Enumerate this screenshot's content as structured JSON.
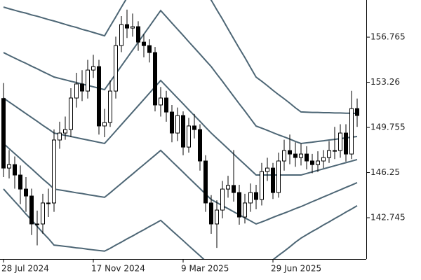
{
  "chart_data": {
    "type": "candlestick",
    "categories": [
      "28 Jul 2024",
      null,
      null,
      null,
      null,
      null,
      null,
      null,
      null,
      null,
      null,
      null,
      null,
      null,
      null,
      null,
      "17 Nov 2024",
      null,
      null,
      null,
      null,
      null,
      null,
      null,
      null,
      null,
      null,
      null,
      null,
      null,
      null,
      null,
      "9 Mar 2025",
      null,
      null,
      null,
      null,
      null,
      null,
      null,
      null,
      null,
      null,
      null,
      null,
      null,
      null,
      null,
      "29 Jun 2025",
      null,
      null,
      null,
      null,
      null,
      null,
      null,
      null,
      null,
      null,
      null,
      null,
      null,
      null,
      null
    ],
    "open": [
      152.0,
      146.6,
      146.87,
      146.06,
      144.97,
      144.43,
      142.26,
      142.26,
      143.89,
      143.89,
      148.78,
      149.32,
      149.59,
      152.04,
      153.13,
      152.58,
      154.21,
      154.48,
      149.87,
      150.14,
      152.58,
      156.11,
      157.74,
      157.47,
      157.58,
      156.38,
      156.11,
      155.57,
      151.5,
      152.04,
      150.95,
      149.32,
      150.68,
      148.23,
      149.87,
      149.59,
      147.15,
      143.89,
      142.26,
      143.34,
      144.97,
      145.25,
      144.7,
      142.8,
      143.89,
      144.7,
      144.16,
      146.33,
      146.6,
      144.7,
      147.15,
      147.96,
      147.69,
      147.42,
      147.69,
      147.15,
      146.87,
      147.15,
      147.42,
      147.96,
      147.96,
      149.32,
      147.69,
      151.22
    ],
    "high": [
      153.2,
      148.0,
      147.5,
      146.8,
      145.9,
      145.0,
      143.3,
      144.6,
      145.0,
      149.6,
      150.2,
      150.6,
      152.8,
      154.0,
      154.2,
      155.0,
      155.4,
      155.0,
      151.2,
      153.4,
      156.8,
      158.4,
      158.9,
      158.6,
      158.0,
      157.0,
      156.6,
      156.0,
      152.9,
      152.6,
      151.5,
      151.3,
      151.0,
      150.5,
      150.8,
      150.0,
      147.6,
      144.5,
      144.1,
      145.6,
      146.0,
      148.0,
      145.3,
      144.6,
      145.4,
      145.3,
      147.0,
      147.4,
      147.0,
      147.8,
      148.8,
      149.2,
      148.6,
      148.5,
      148.3,
      147.7,
      147.9,
      148.0,
      148.7,
      149.8,
      150.0,
      150.0,
      152.6,
      152.0
    ],
    "low": [
      145.9,
      145.8,
      145.0,
      143.8,
      143.2,
      141.4,
      140.6,
      141.5,
      142.8,
      143.2,
      148.1,
      148.8,
      149.0,
      151.3,
      151.8,
      152.0,
      153.6,
      149.2,
      149.0,
      149.8,
      152.0,
      155.6,
      156.7,
      156.8,
      155.7,
      155.2,
      154.8,
      151.0,
      150.6,
      150.2,
      148.6,
      148.7,
      147.6,
      147.8,
      148.9,
      146.4,
      143.2,
      141.5,
      140.4,
      142.7,
      144.3,
      144.0,
      142.2,
      142.3,
      143.2,
      143.4,
      143.7,
      145.6,
      144.2,
      144.3,
      146.4,
      146.9,
      146.7,
      146.8,
      146.5,
      146.2,
      146.3,
      146.6,
      147.0,
      147.3,
      147.4,
      147.1,
      147.3,
      149.8
    ],
    "close": [
      146.6,
      146.87,
      146.06,
      144.97,
      144.43,
      142.26,
      142.26,
      143.89,
      143.89,
      148.78,
      149.32,
      149.59,
      152.04,
      153.13,
      152.58,
      154.21,
      154.48,
      149.87,
      150.14,
      152.58,
      156.11,
      157.74,
      157.47,
      157.58,
      156.38,
      156.11,
      155.57,
      151.5,
      152.04,
      150.95,
      149.32,
      150.68,
      148.23,
      149.87,
      149.59,
      147.15,
      143.89,
      142.26,
      143.34,
      144.97,
      145.25,
      144.7,
      142.8,
      143.89,
      144.7,
      144.16,
      146.33,
      146.6,
      144.7,
      147.15,
      147.96,
      147.69,
      147.42,
      147.69,
      147.15,
      146.87,
      147.15,
      147.42,
      147.96,
      147.96,
      149.32,
      147.69,
      151.22,
      150.68
    ],
    "up_color": "#ffffff",
    "down_color": "#000000",
    "outline_color": "#000000",
    "bands": [
      {
        "color": "#4d6675",
        "values": [
          159.1,
          158.97,
          158.85,
          158.73,
          158.63,
          158.49,
          158.39,
          158.26,
          158.13,
          158.02,
          157.89,
          157.76,
          157.63,
          157.52,
          157.37,
          157.26,
          157.13,
          157.0,
          156.87,
          157.61,
          158.34,
          159.09,
          159.82,
          160.57,
          161.3,
          162.05,
          162.78,
          163.53,
          164.26,
          163.75,
          163.23,
          162.72,
          162.21,
          161.69,
          161.18,
          160.67,
          160.15,
          159.64,
          158.89,
          158.17,
          157.4,
          156.65,
          155.9,
          155.18,
          154.41,
          153.66,
          153.34,
          153.0,
          152.64,
          152.3,
          151.98,
          151.64,
          151.28,
          150.96,
          150.94,
          150.92,
          150.92,
          150.9,
          150.9,
          150.88,
          150.88,
          150.86,
          150.86,
          150.84
        ]
      },
      {
        "color": "#4d6675",
        "values": [
          155.57,
          155.35,
          155.14,
          154.93,
          154.73,
          154.51,
          154.31,
          154.09,
          153.88,
          153.67,
          153.56,
          153.45,
          153.34,
          153.24,
          153.12,
          153.02,
          152.91,
          152.8,
          152.69,
          153.3,
          153.91,
          154.53,
          155.14,
          155.76,
          156.37,
          156.99,
          157.6,
          158.22,
          158.83,
          158.35,
          157.86,
          157.38,
          156.9,
          156.41,
          155.93,
          155.45,
          154.96,
          154.48,
          153.9,
          153.34,
          152.75,
          152.17,
          151.59,
          151.03,
          150.44,
          149.86,
          149.7,
          149.53,
          149.35,
          149.18,
          149.02,
          148.85,
          148.67,
          148.51,
          148.56,
          148.61,
          148.67,
          148.72,
          148.78,
          148.83,
          148.89,
          148.94,
          149.0,
          149.05
        ]
      },
      {
        "color": "#4d6675",
        "values": [
          152.04,
          151.73,
          151.43,
          151.13,
          150.83,
          150.53,
          150.23,
          149.92,
          149.63,
          149.32,
          149.23,
          149.14,
          149.05,
          148.96,
          148.87,
          148.78,
          148.69,
          148.6,
          148.51,
          148.99,
          149.48,
          149.97,
          150.46,
          150.95,
          151.44,
          151.93,
          152.42,
          152.91,
          153.4,
          152.95,
          152.49,
          152.04,
          151.59,
          151.13,
          150.68,
          150.23,
          149.77,
          149.32,
          148.91,
          148.51,
          148.1,
          147.69,
          147.28,
          146.88,
          146.47,
          146.06,
          146.06,
          146.06,
          146.06,
          146.06,
          146.06,
          146.06,
          146.06,
          146.06,
          146.18,
          146.3,
          146.42,
          146.54,
          146.66,
          146.78,
          146.9,
          147.02,
          147.14,
          147.26
        ]
      },
      {
        "color": "#4d6675",
        "values": [
          148.51,
          148.11,
          147.72,
          147.33,
          146.93,
          146.55,
          146.15,
          145.75,
          145.38,
          144.97,
          144.9,
          144.83,
          144.76,
          144.68,
          144.62,
          144.54,
          144.47,
          144.4,
          144.33,
          144.68,
          145.05,
          145.41,
          145.78,
          146.14,
          146.51,
          146.87,
          147.24,
          147.6,
          147.97,
          147.55,
          147.12,
          146.7,
          146.28,
          145.85,
          145.43,
          145.01,
          144.58,
          144.16,
          143.92,
          143.68,
          143.45,
          143.21,
          142.97,
          142.73,
          142.5,
          142.26,
          142.42,
          142.59,
          142.77,
          142.94,
          143.1,
          143.27,
          143.45,
          143.61,
          143.8,
          143.99,
          144.17,
          144.36,
          144.54,
          144.73,
          144.91,
          145.1,
          145.28,
          145.47
        ]
      },
      {
        "color": "#4d6675",
        "values": [
          144.98,
          144.49,
          144.01,
          143.53,
          143.03,
          142.57,
          142.07,
          141.58,
          141.13,
          140.62,
          140.57,
          140.52,
          140.47,
          140.4,
          140.37,
          140.3,
          140.25,
          140.2,
          140.15,
          140.37,
          140.62,
          140.85,
          141.1,
          141.33,
          141.58,
          141.81,
          142.06,
          142.29,
          142.54,
          142.15,
          141.75,
          141.36,
          140.97,
          140.57,
          140.18,
          139.79,
          139.39,
          139.0,
          138.93,
          138.85,
          138.8,
          138.73,
          138.66,
          138.58,
          138.53,
          138.46,
          138.78,
          139.12,
          139.48,
          139.82,
          140.14,
          140.48,
          140.84,
          141.16,
          141.42,
          141.68,
          141.92,
          142.18,
          142.42,
          142.68,
          142.92,
          143.18,
          143.42,
          143.68
        ]
      }
    ],
    "ylim": [
      139.54,
      159.65
    ],
    "yticks": [
      142.745,
      146.25,
      {
        "value": 149.755,
        "label": "149.755"
      },
      153.26,
      156.765
    ]
  }
}
